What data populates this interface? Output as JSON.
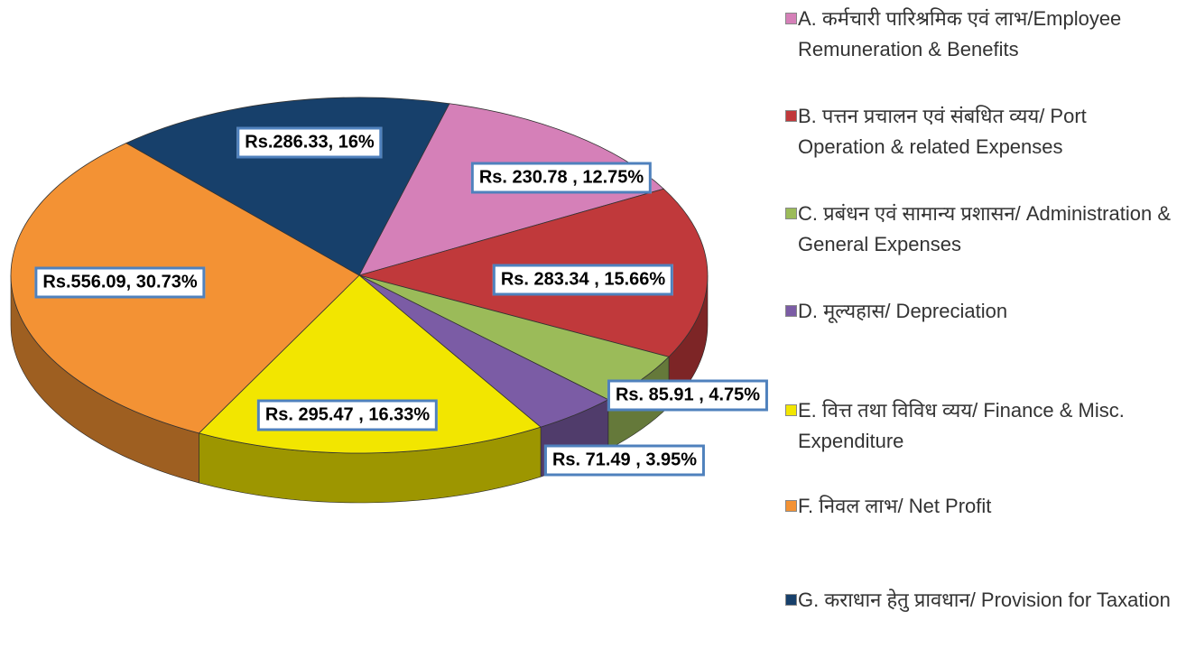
{
  "chart_data": {
    "type": "pie",
    "categories": [
      "A. कर्मचारी पारिश्रमिक एवं लाभ/Employee Remuneration & Benefits",
      "B. पत्तन प्रचालन एवं संबधित व्यय/ Port Operation & related Expenses",
      "C. प्रबंधन एवं सामान्य प्रशासन/ Administration & General Expenses",
      "D. मूल्यहास/ Depreciation",
      "E. वित्त तथा विविध व्यय/ Finance & Misc. Expenditure",
      "F. निवल लाभ/ Net Profit",
      "G. कराधान हेतु प्रावधान/ Provision for Taxation"
    ],
    "values": [
      230.78,
      283.34,
      85.91,
      71.49,
      295.47,
      556.09,
      286.33
    ],
    "value_labels": [
      "Rs. 230.78 , 12.75%",
      "Rs. 283.34 , 15.66%",
      "Rs. 85.91 , 4.75%",
      "Rs. 71.49 , 3.95%",
      "Rs. 295.47 , 16.33%",
      "Rs.556.09, 30.73%",
      "Rs.286.33, 16%"
    ],
    "colors": [
      "#d580b8",
      "#c0393b",
      "#9bbb59",
      "#7b5ca5",
      "#f2e600",
      "#f39234",
      "#17406b"
    ]
  }
}
